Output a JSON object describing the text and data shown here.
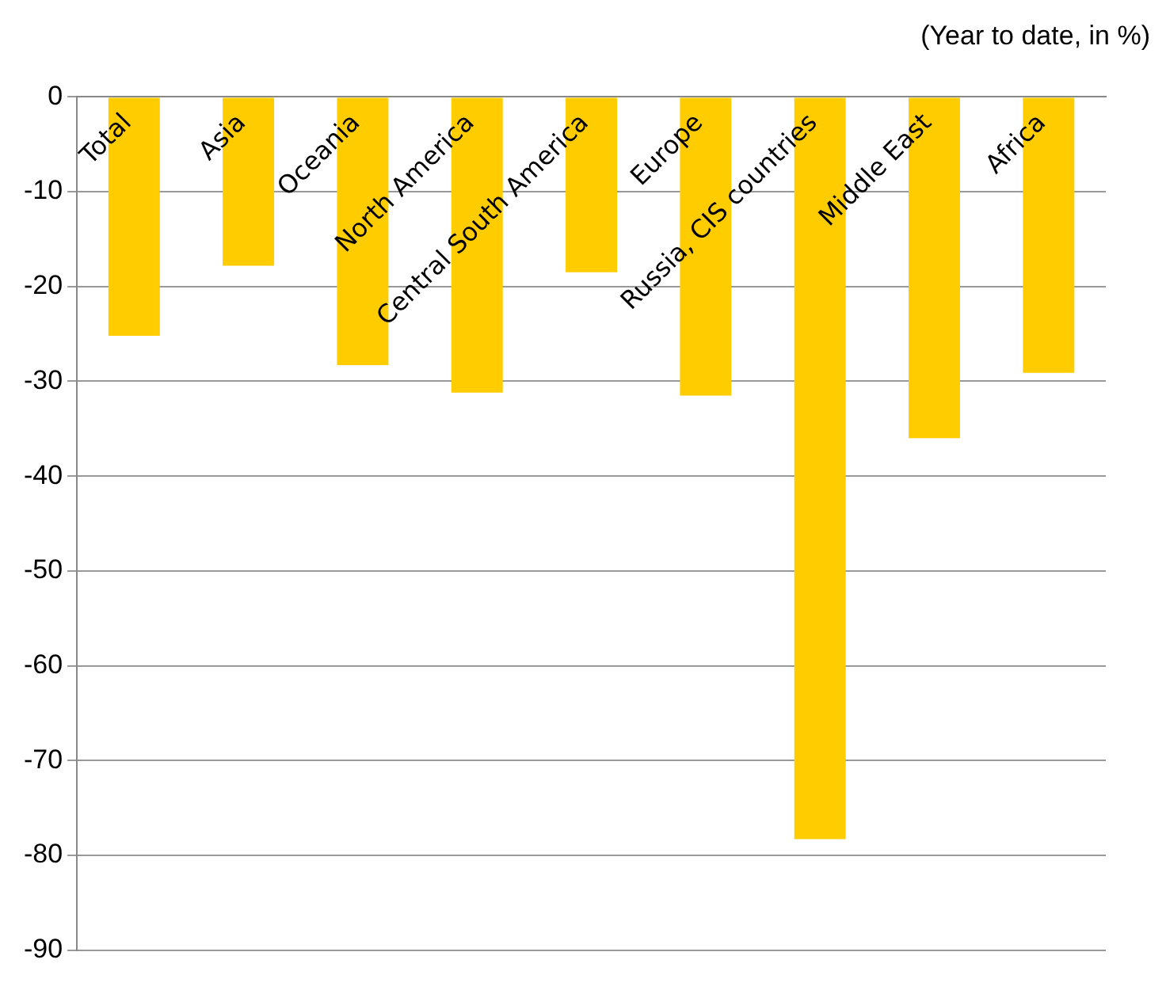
{
  "chart_data": {
    "type": "bar",
    "subtitle": "(Year to date, in %)",
    "categories": [
      "Total",
      "Asia",
      "Oceania",
      "North America",
      "Central South America",
      "Europe",
      "Russia, CIS countries",
      "Middle East",
      "Africa"
    ],
    "values": [
      -25.2,
      -17.8,
      -28.3,
      -31.2,
      -18.5,
      -31.5,
      -78.3,
      -36.0,
      -29.1
    ],
    "color": "#ffcc00",
    "ylim": [
      -90,
      0
    ],
    "yticks": [
      0,
      -10,
      -20,
      -30,
      -40,
      -50,
      -60,
      -70,
      -80,
      -90
    ],
    "grid": "y",
    "legend": false
  }
}
